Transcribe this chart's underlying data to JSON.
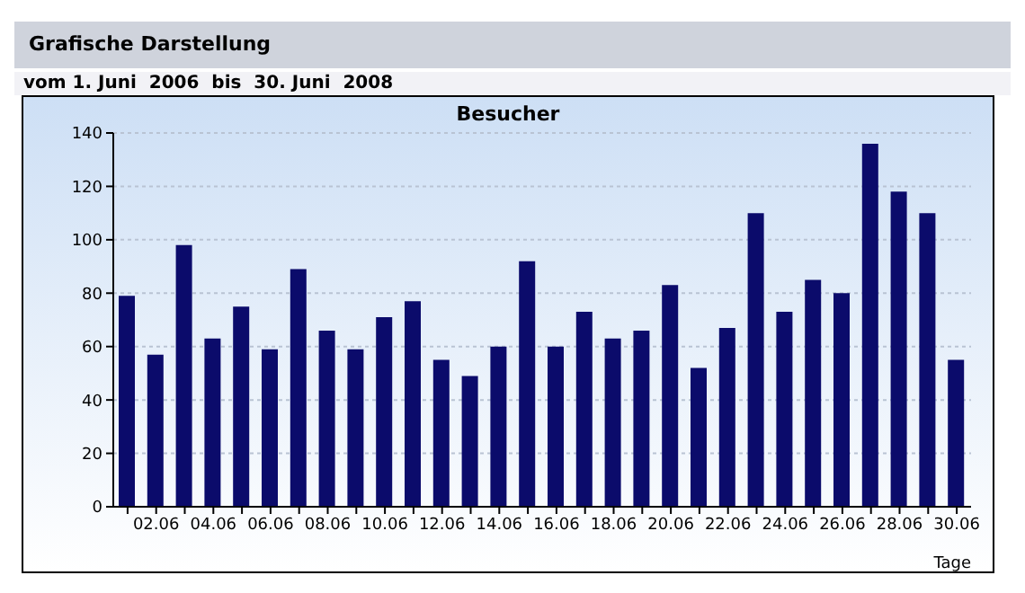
{
  "chart_data": {
    "type": "bar",
    "title": "Grafische Darstellung",
    "subtitle": "vom 1. Juni  2006  bis  30. Juni  2008",
    "xlabel": "Tage",
    "annotations": [
      "Besucher"
    ],
    "categories": [
      null,
      "02.06",
      null,
      "04.06",
      null,
      "06.06",
      null,
      "08.06",
      null,
      "10.06",
      null,
      "12.06",
      null,
      "14.06",
      null,
      "16.06",
      null,
      "18.06",
      null,
      "20.06",
      null,
      "22.06",
      null,
      "24.06",
      null,
      "26.06",
      null,
      "28.06",
      null,
      "30.06"
    ],
    "values": [
      79,
      57,
      98,
      63,
      75,
      59,
      89,
      66,
      59,
      71,
      77,
      55,
      49,
      60,
      92,
      60,
      73,
      63,
      66,
      83,
      52,
      67,
      110,
      73,
      85,
      80,
      136,
      118,
      110,
      55
    ],
    "color": "#0b0b6b",
    "ylim": [
      0,
      140
    ],
    "yticks": [
      0,
      20,
      40,
      60,
      80,
      100,
      120,
      140
    ],
    "grid": "y"
  }
}
